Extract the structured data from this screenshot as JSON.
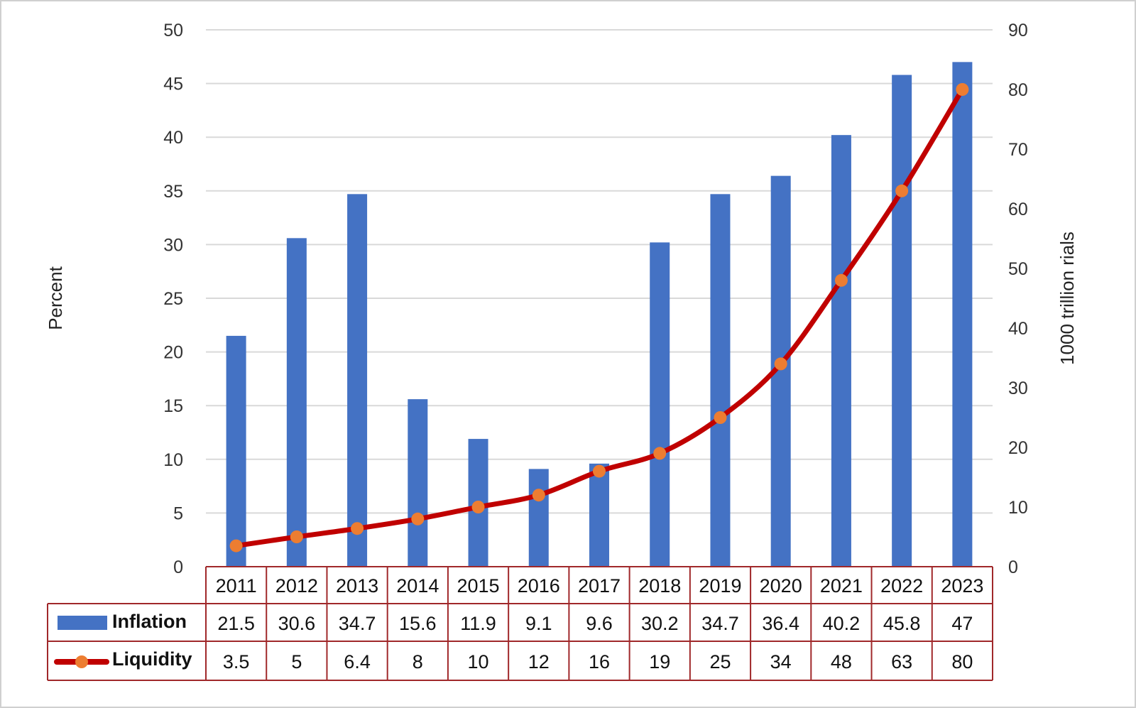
{
  "chart_data": {
    "type": "bar+line",
    "categories": [
      "2011",
      "2012",
      "2013",
      "2014",
      "2015",
      "2016",
      "2017",
      "2018",
      "2019",
      "2020",
      "2021",
      "2022",
      "2023"
    ],
    "series": [
      {
        "name": "Inflation",
        "type": "bar",
        "axis": "left",
        "color": "#4472C4",
        "values": [
          21.5,
          30.6,
          34.7,
          15.6,
          11.9,
          9.1,
          9.6,
          30.2,
          34.7,
          36.4,
          40.2,
          45.8,
          47
        ],
        "labels": [
          "21.5",
          "30.6",
          "34.7",
          "15.6",
          "11.9",
          "9.1",
          "9.6",
          "30.2",
          "34.7",
          "36.4",
          "40.2",
          "45.8",
          "47"
        ]
      },
      {
        "name": "Liquidity",
        "type": "line",
        "axis": "right",
        "color": "#C00000",
        "marker_color": "#ED7D31",
        "values": [
          3.5,
          5,
          6.4,
          8,
          10,
          12,
          16,
          19,
          25,
          34,
          48,
          63,
          80
        ],
        "labels": [
          "3.5",
          "5",
          "6.4",
          "8",
          "10",
          "12",
          "16",
          "19",
          "25",
          "34",
          "48",
          "63",
          "80"
        ]
      }
    ],
    "ylabel": "Percent",
    "y2label": "1000 trillion rials",
    "ylim": [
      0,
      50
    ],
    "y2lim": [
      0,
      90
    ],
    "yticks": [
      "0",
      "5",
      "10",
      "15",
      "20",
      "25",
      "30",
      "35",
      "40",
      "45",
      "50"
    ],
    "y2ticks": [
      "0",
      "10",
      "20",
      "30",
      "40",
      "50",
      "60",
      "70",
      "80",
      "90"
    ],
    "grid": true,
    "legend": "data-table-bottom",
    "table_border_color": "#A0282A"
  }
}
